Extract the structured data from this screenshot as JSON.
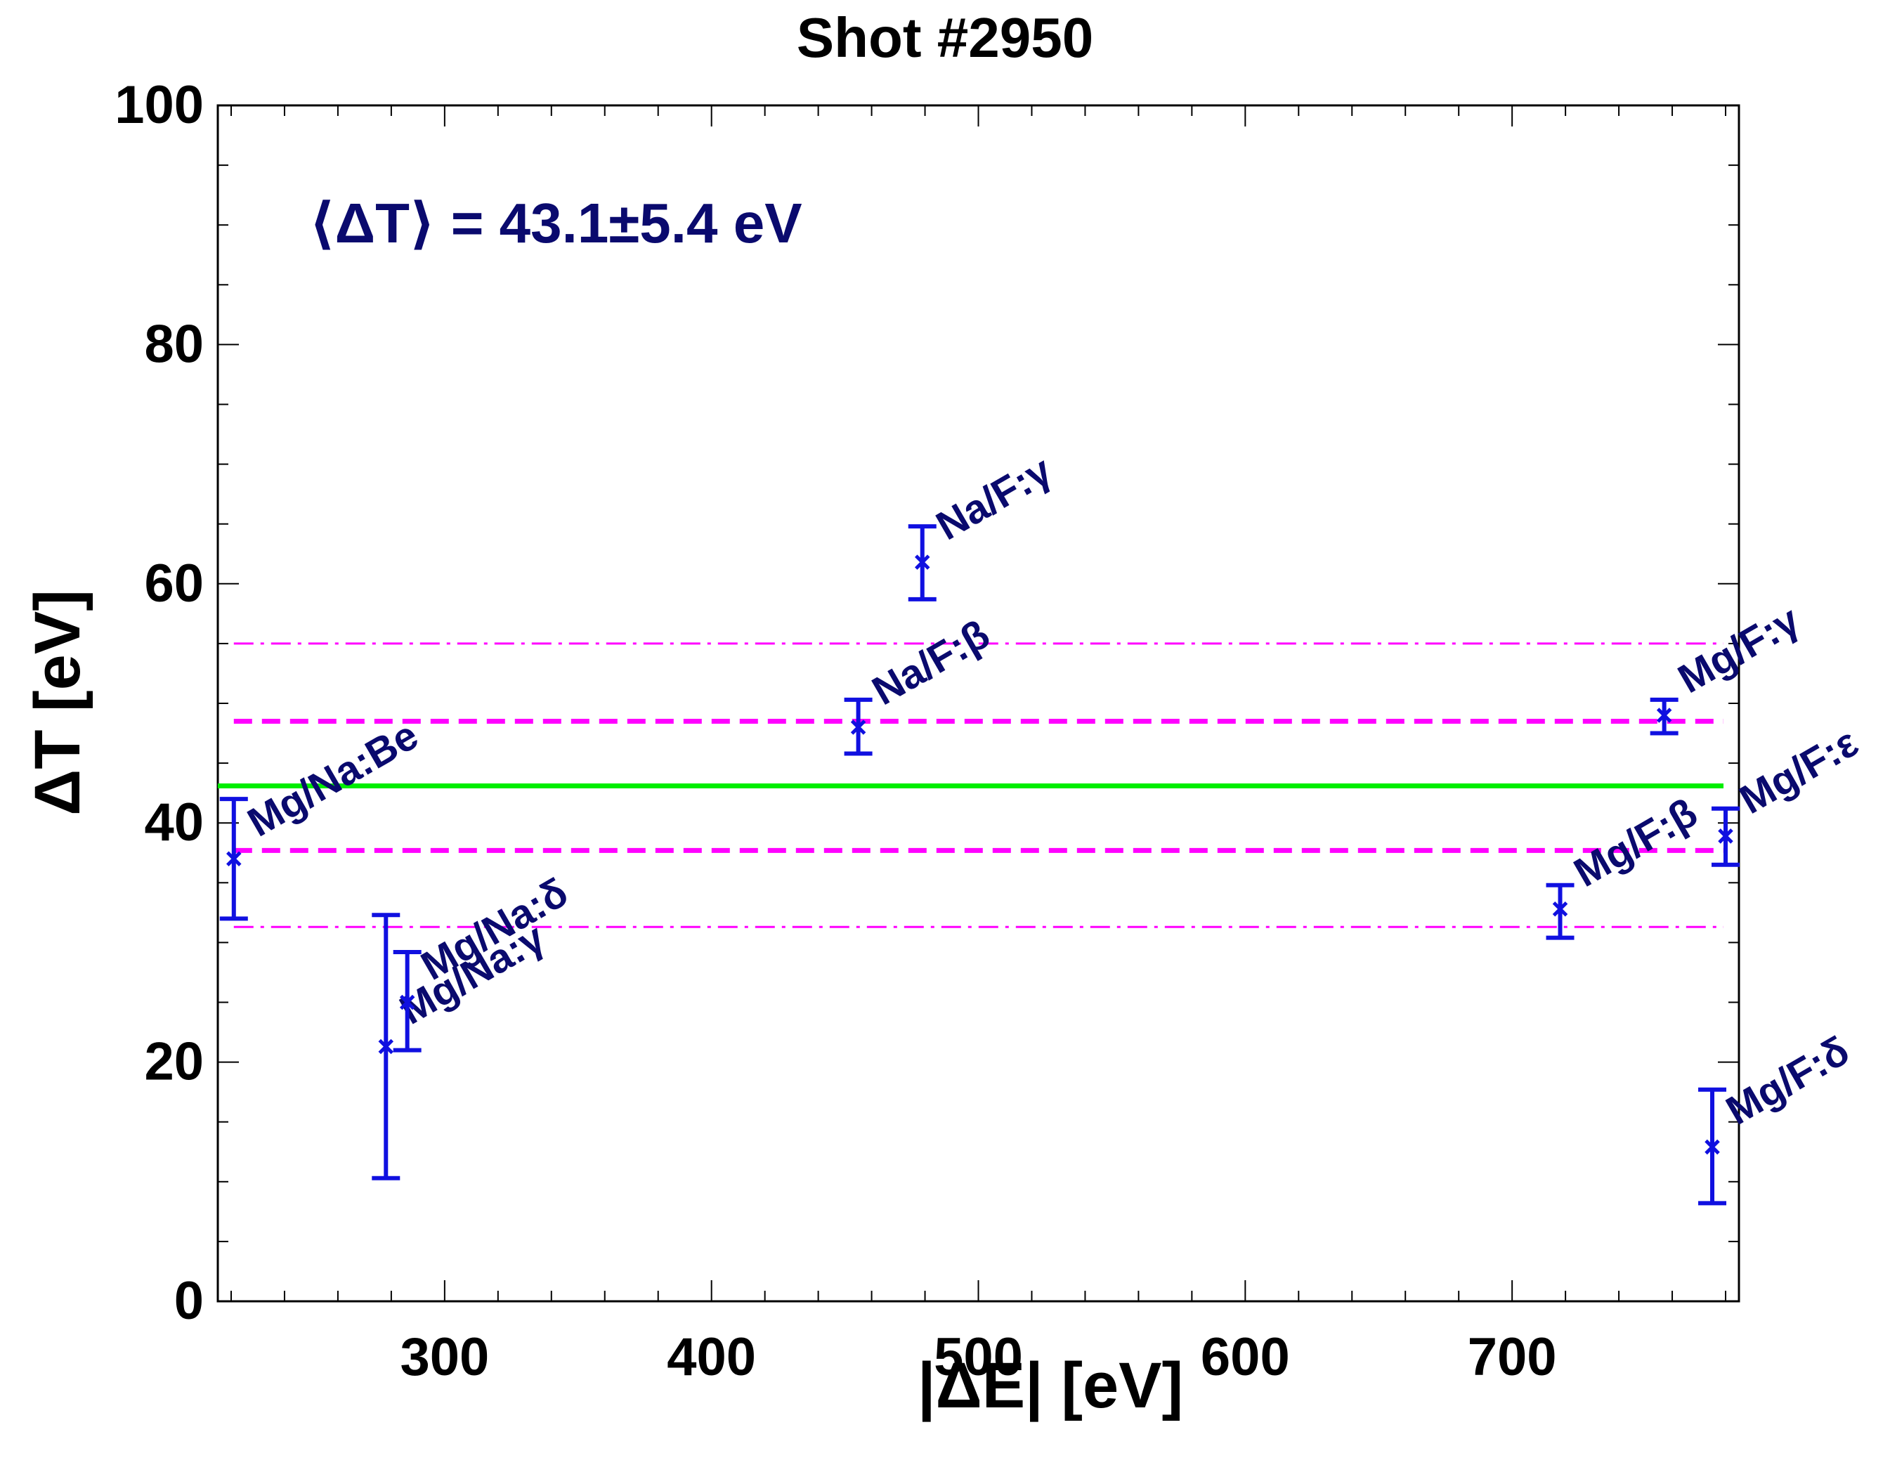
{
  "chart_data": {
    "type": "scatter",
    "title": "Shot #2950",
    "xlabel": "|ΔE| [eV]",
    "ylabel": "ΔT [eV]",
    "xlim": [
      215,
      785
    ],
    "ylim": [
      0,
      100
    ],
    "x_ticks": [
      300,
      400,
      500,
      600,
      700
    ],
    "y_ticks": [
      0,
      20,
      40,
      60,
      80,
      100
    ],
    "annotation": "⟨ΔT⟩ = 43.1±5.4 eV",
    "mean_line": {
      "value": 43.1,
      "color": "#00ee00",
      "style": "solid"
    },
    "sigma_lines": [
      {
        "value": 48.5,
        "color": "#ff00ff",
        "style": "dashed"
      },
      {
        "value": 37.7,
        "color": "#ff00ff",
        "style": "dashed"
      }
    ],
    "twosigma_lines": [
      {
        "value": 55.0,
        "color": "#ff00ff",
        "style": "dashdot"
      },
      {
        "value": 31.3,
        "color": "#ff00ff",
        "style": "dashdot"
      }
    ],
    "colors": {
      "points": "#1010e0",
      "labels": "#0a0a6e",
      "axes": "#000000"
    },
    "points": [
      {
        "label": "Mg/Na:Be",
        "x": 221,
        "y": 37.0,
        "ylow": 32.0,
        "yhigh": 42.0
      },
      {
        "label": "Mg/Na:γ",
        "x": 278,
        "y": 21.3,
        "ylow": 10.3,
        "yhigh": 32.3
      },
      {
        "label": "Mg/Na:δ",
        "x": 286,
        "y": 25.0,
        "ylow": 21.0,
        "yhigh": 29.2
      },
      {
        "label": "Na/F:β",
        "x": 455,
        "y": 48.0,
        "ylow": 45.8,
        "yhigh": 50.3
      },
      {
        "label": "Na/F:γ",
        "x": 479,
        "y": 61.8,
        "ylow": 58.7,
        "yhigh": 64.8
      },
      {
        "label": "Mg/F:β",
        "x": 718,
        "y": 32.8,
        "ylow": 30.4,
        "yhigh": 34.8
      },
      {
        "label": "Mg/F:γ",
        "x": 757,
        "y": 49.0,
        "ylow": 47.5,
        "yhigh": 50.3
      },
      {
        "label": "Mg/F:δ",
        "x": 775,
        "y": 12.9,
        "ylow": 8.2,
        "yhigh": 17.7
      },
      {
        "label": "Mg/F:ε",
        "x": 780,
        "y": 38.9,
        "ylow": 36.5,
        "yhigh": 41.2
      }
    ]
  }
}
